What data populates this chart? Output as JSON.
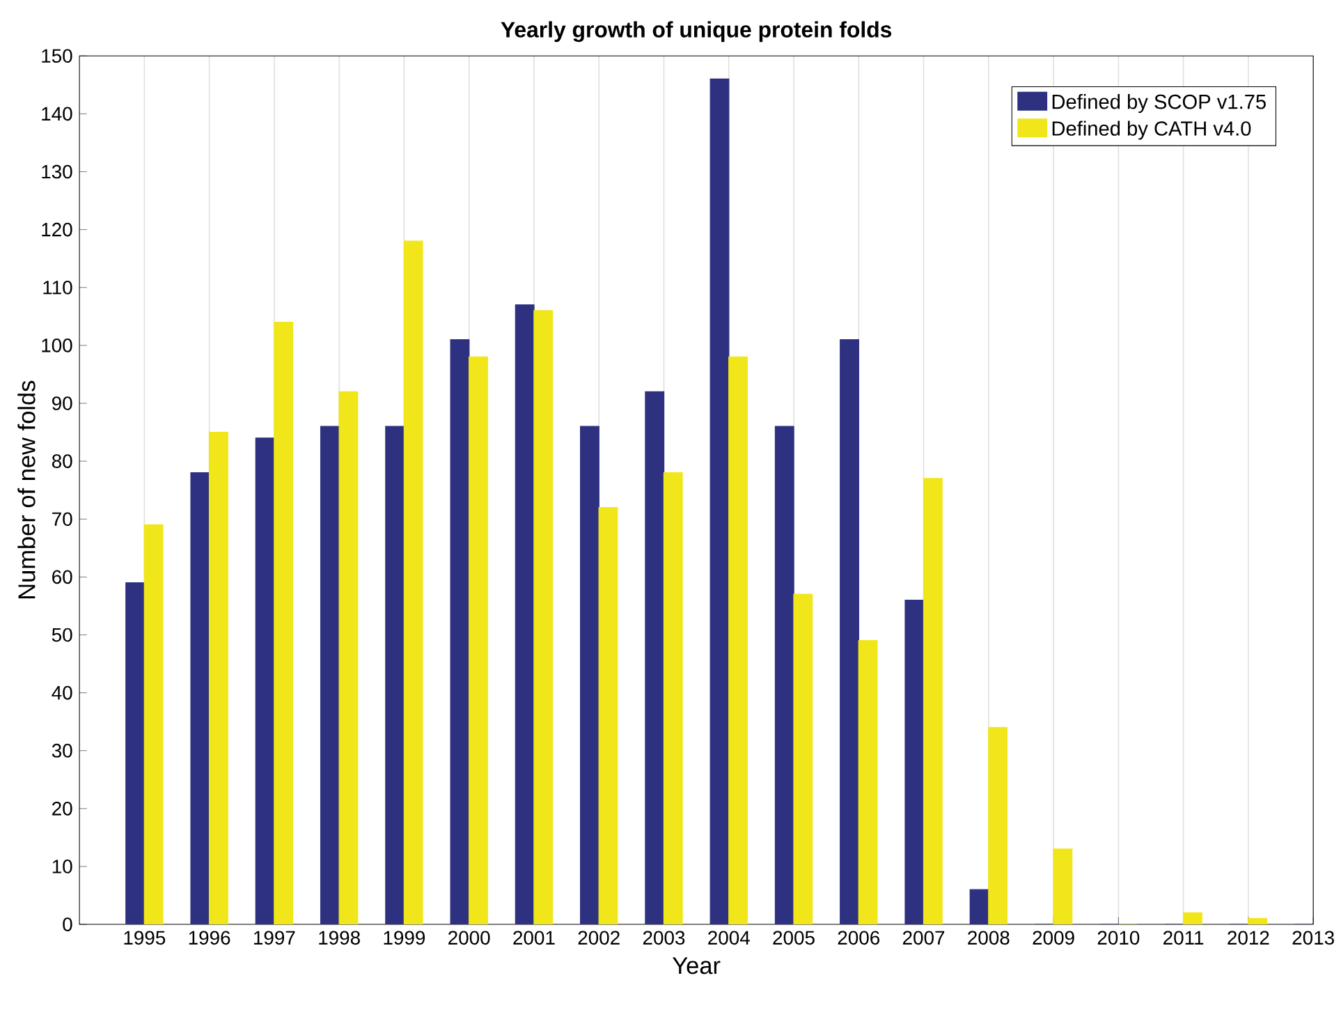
{
  "chart_data": {
    "type": "bar",
    "title": "Yearly growth of unique protein folds",
    "xlabel": "Year",
    "ylabel": "Number of new folds",
    "categories": [
      "1995",
      "1996",
      "1997",
      "1998",
      "1999",
      "2000",
      "2001",
      "2002",
      "2003",
      "2004",
      "2005",
      "2006",
      "2007",
      "2008",
      "2009",
      "2010",
      "2011",
      "2012",
      "2013"
    ],
    "series": [
      {
        "name": "Defined by SCOP v1.75",
        "color": "#2e3180",
        "values": [
          59,
          78,
          84,
          86,
          86,
          101,
          107,
          86,
          92,
          146,
          86,
          101,
          56,
          6,
          0,
          0,
          0,
          0,
          0
        ]
      },
      {
        "name": "Defined by CATH v4.0",
        "color": "#f0e619",
        "values": [
          69,
          85,
          104,
          92,
          118,
          98,
          106,
          72,
          78,
          98,
          57,
          49,
          77,
          34,
          13,
          0,
          2,
          1,
          0
        ]
      }
    ],
    "ylim": [
      0,
      150
    ],
    "yticks": [
      0,
      10,
      20,
      30,
      40,
      50,
      60,
      70,
      80,
      90,
      100,
      110,
      120,
      130,
      140,
      150
    ],
    "grid": "x",
    "legend": "top right"
  }
}
